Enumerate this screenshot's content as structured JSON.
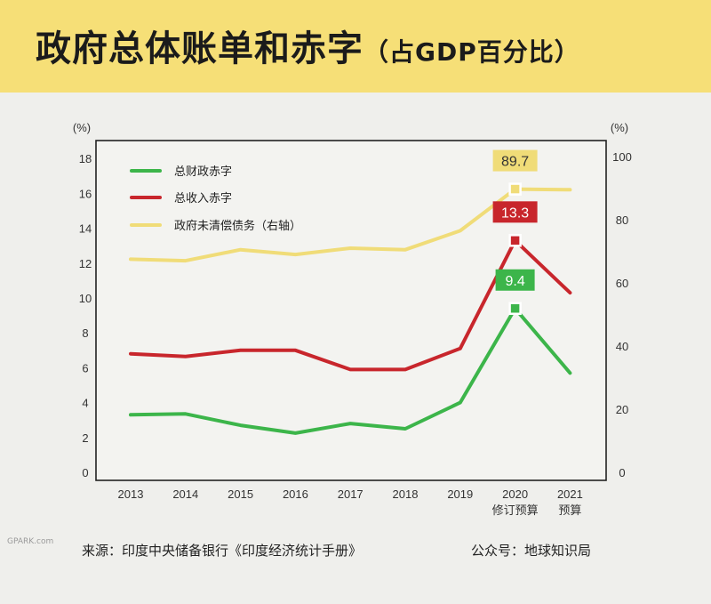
{
  "header": {
    "title": "政府总体账单和赤字",
    "subtitle": "（占GDP百分比）"
  },
  "footer": {
    "source": "来源：印度中央储备银行《印度经济统计手册》",
    "account": "公众号：地球知识局"
  },
  "watermark": {
    "text": "GPARK.com"
  },
  "colors": {
    "header_bg": "#f6df77",
    "green": "#3cb54a",
    "red": "#c8262c",
    "yellow": "#f0dc78"
  },
  "chart_data": {
    "type": "line",
    "categories": [
      "2013",
      "2014",
      "2015",
      "2016",
      "2017",
      "2018",
      "2019",
      "2020",
      "2021"
    ],
    "category_sublabels": [
      "",
      "",
      "",
      "",
      "",
      "",
      "",
      "修订预算",
      "预算"
    ],
    "y_left": {
      "unit": "(%)",
      "range": [
        0,
        18
      ],
      "ticks": [
        0,
        2,
        4,
        6,
        8,
        10,
        12,
        14,
        16,
        18
      ]
    },
    "y_right": {
      "unit": "(%)",
      "range": [
        0,
        100
      ],
      "ticks": [
        0,
        20,
        40,
        60,
        80,
        100
      ]
    },
    "series": [
      {
        "name": "总财政赤字",
        "color": "#3cb54a",
        "axis": "left",
        "values": [
          3.3,
          3.35,
          2.7,
          2.25,
          2.8,
          2.5,
          4.0,
          9.4,
          5.7
        ]
      },
      {
        "name": "总收入赤字",
        "color": "#c8262c",
        "axis": "left",
        "values": [
          6.8,
          6.65,
          7.0,
          7.0,
          5.9,
          5.9,
          7.1,
          13.3,
          10.3
        ]
      },
      {
        "name": "政府未清偿债务（右轴）",
        "color": "#f0dc78",
        "axis": "right",
        "values": [
          67.5,
          67.0,
          70.5,
          69.0,
          71.0,
          70.5,
          76.5,
          89.7,
          89.5
        ]
      }
    ],
    "annotations": [
      {
        "series": 0,
        "index": 7,
        "text": "9.4"
      },
      {
        "series": 1,
        "index": 7,
        "text": "13.3"
      },
      {
        "series": 2,
        "index": 7,
        "text": "89.7"
      }
    ],
    "legend_position": "top-left",
    "grid": false
  }
}
